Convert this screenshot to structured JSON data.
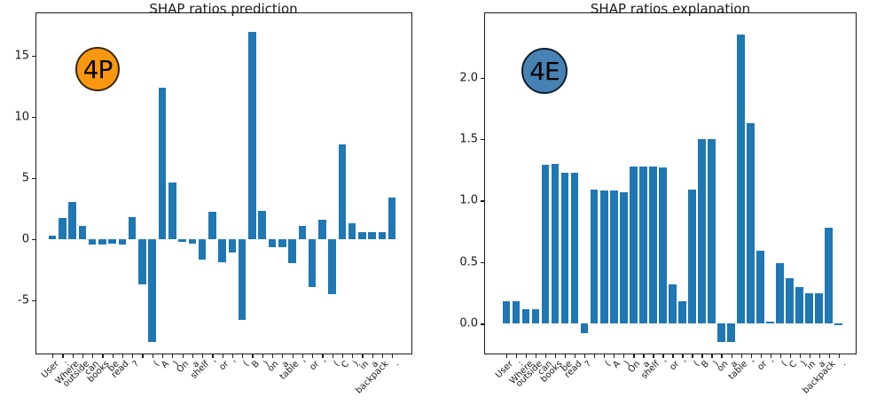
{
  "figure": {
    "background": "#ffffff",
    "bar_color": "#1f77b4",
    "spine_color": "#1a1a1a"
  },
  "chart_data": [
    {
      "type": "bar",
      "title": "SHAP ratios prediction",
      "badge": {
        "label": "4P",
        "fill": "#f99810",
        "border": "#3a2700"
      },
      "categories": [
        "User",
        ":",
        "Where",
        "outside",
        "can",
        "books",
        "be",
        "read",
        "?",
        "",
        "(",
        "A",
        ")",
        "On",
        "a",
        "shelf",
        "'",
        "or",
        "'",
        "(",
        "B",
        ")",
        "on",
        "a",
        "table",
        "'",
        "or",
        "'",
        "(",
        "C",
        ")",
        "in",
        "a",
        "backpack",
        "."
      ],
      "values": [
        0.25,
        1.7,
        3.0,
        1.1,
        -0.45,
        -0.45,
        -0.4,
        -0.45,
        1.8,
        -3.7,
        -8.4,
        12.4,
        4.6,
        -0.25,
        -0.35,
        -1.7,
        2.2,
        -1.9,
        -1.1,
        -6.6,
        16.9,
        2.3,
        -0.7,
        -0.7,
        -2.0,
        1.05,
        -3.95,
        1.55,
        -4.5,
        7.7,
        1.3,
        0.55,
        0.55,
        0.6,
        3.4
      ],
      "xlabel": "",
      "ylabel": "",
      "ylim": [
        -9.43,
        18.52
      ],
      "yticks": [
        -5,
        0,
        5,
        10,
        15
      ],
      "ytick_labels": [
        "-5",
        "0",
        "5",
        "10",
        "15"
      ],
      "grid": false,
      "legend": null
    },
    {
      "type": "bar",
      "title": "SHAP ratios explanation",
      "badge": {
        "label": "4E",
        "fill": "#4682b4",
        "border": "#0d1f2d"
      },
      "categories": [
        "User",
        ":",
        "Where",
        "outside",
        "can",
        "books",
        "be",
        "read",
        "?",
        "",
        "(",
        "A",
        ")",
        "On",
        "a",
        "shelf",
        "'",
        "or",
        "'",
        "(",
        "B",
        ")",
        "on",
        "a",
        "table",
        "'",
        "or",
        "'",
        "(",
        "C",
        ")",
        "in",
        "a",
        "backpack",
        "."
      ],
      "values": [
        0.18,
        0.18,
        0.12,
        0.12,
        1.29,
        1.3,
        1.23,
        1.23,
        -0.08,
        1.09,
        1.08,
        1.08,
        1.07,
        1.28,
        1.28,
        1.28,
        1.27,
        0.32,
        0.18,
        1.09,
        1.5,
        1.5,
        -0.15,
        -0.15,
        2.35,
        1.63,
        0.59,
        0.02,
        0.49,
        0.37,
        0.3,
        0.25,
        0.25,
        0.78,
        -0.01
      ],
      "xlabel": "",
      "ylabel": "",
      "ylim": [
        -0.25,
        2.53
      ],
      "yticks": [
        0.0,
        0.5,
        1.0,
        1.5,
        2.0
      ],
      "ytick_labels": [
        "0.0",
        "0.5",
        "1.0",
        "1.5",
        "2.0"
      ],
      "grid": false,
      "legend": null
    }
  ]
}
